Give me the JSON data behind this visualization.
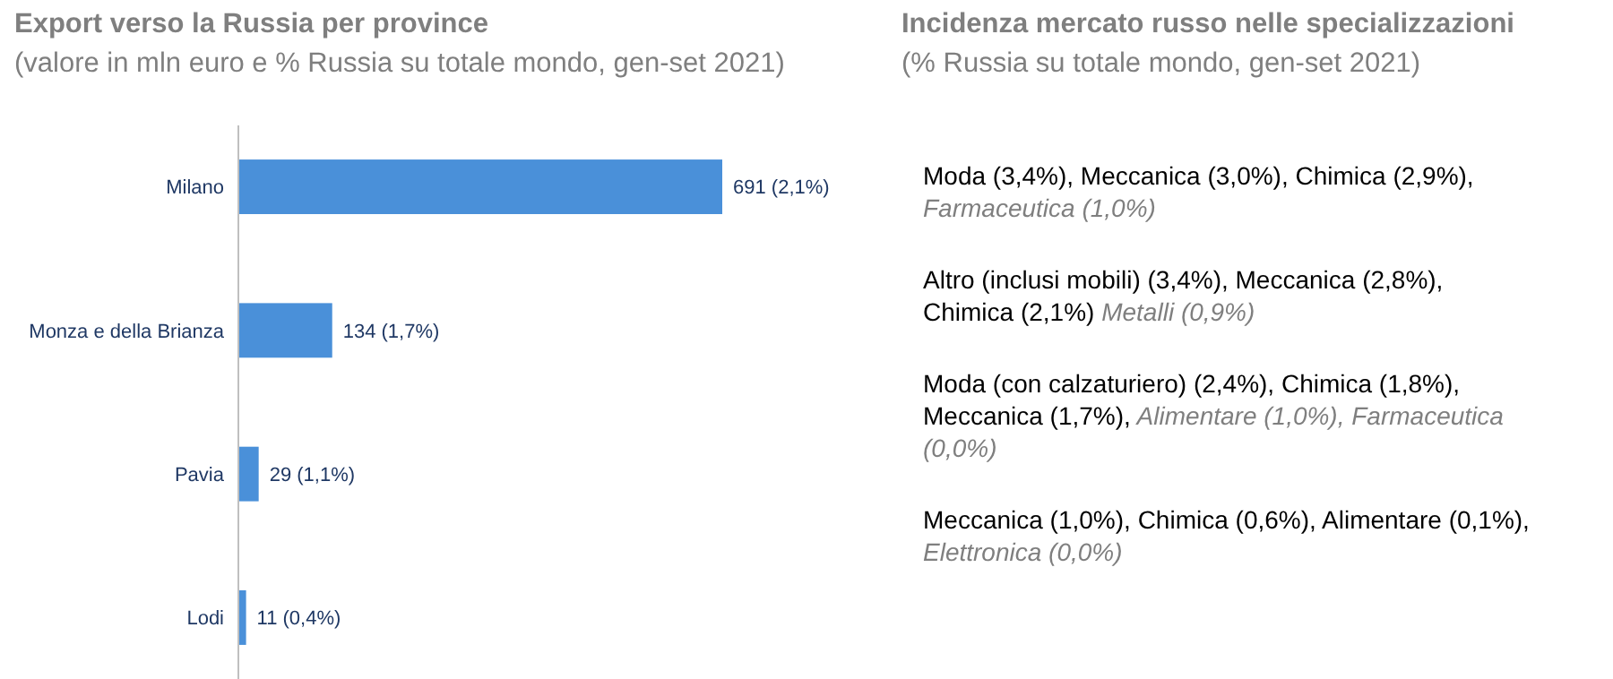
{
  "chart_data": [
    {
      "type": "bar",
      "orientation": "horizontal",
      "title": "Export verso la Russia per province",
      "subtitle": "(valore in mln euro e % Russia su totale mondo, gen-set 2021)",
      "categories": [
        "Milano",
        "Monza e della Brianza",
        "Pavia",
        "Lodi"
      ],
      "values": [
        691,
        134,
        29,
        11
      ],
      "value_labels": [
        "691 (2,1%)",
        "134 (1,7%)",
        "29 (1,1%)",
        "11 (0,4%)"
      ],
      "color": "#4a90d9"
    },
    {
      "type": "other",
      "title": "Incidenza mercato russo nelle specializzazioni",
      "subtitle": "(% Russia su totale mondo, gen-set 2021)",
      "annotations": [
        "Moda (3,4%), Meccanica (3,0%), Chimica (2,9%),",
        "Farmaceutica (1,0%)",
        "Altro (inclusi mobili) (3,4%), Meccanica (2,8%), Chimica (2,1%)",
        "Metalli (0,9%)",
        "Moda (con calzaturiero) (2,4%), Chimica (1,8%), Meccanica (1,7%),",
        "Alimentare (1,0%), Farmaceutica (0,0%)",
        "Meccanica (1,0%), Chimica (0,6%), Alimentare (0,1%),",
        "Elettronica (0,0%)"
      ]
    }
  ]
}
